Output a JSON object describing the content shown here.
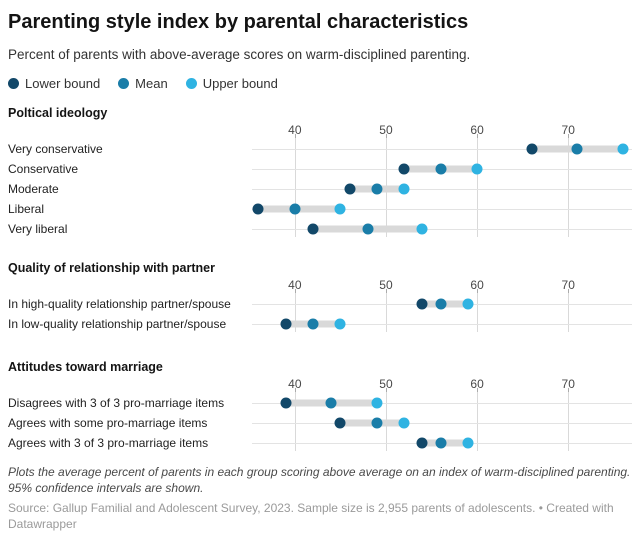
{
  "colors": {
    "lower_bound": "#124869",
    "mean": "#1a7da8",
    "upper_bound": "#2fb3e2",
    "confidence_band": "#d9d9d9",
    "gridline": "#d9d9d9",
    "row_line": "#e3e3e3"
  },
  "chart_data": {
    "type": "scatter",
    "variant": "dot-range-plot",
    "title": "Parenting style index by parental characteristics",
    "subtitle": "Percent of parents with above-average scores on warm-disciplined parenting.",
    "legend": {
      "position": "top",
      "entries": [
        {
          "label": "Lower bound",
          "color": "#124869"
        },
        {
          "label": "Mean",
          "color": "#1a7da8"
        },
        {
          "label": "Upper bound",
          "color": "#2fb3e2"
        }
      ]
    },
    "x_axis": {
      "ticks": [
        40,
        50,
        60,
        70
      ],
      "range": [
        35.3,
        77.0
      ],
      "unit": "percent",
      "grid": true
    },
    "sections": [
      {
        "title": "Poltical ideology",
        "rows": [
          {
            "label": "Very conservative",
            "lower": 66,
            "mean": 71,
            "upper": 76
          },
          {
            "label": "Conservative",
            "lower": 52,
            "mean": 56,
            "upper": 60
          },
          {
            "label": "Moderate",
            "lower": 46,
            "mean": 49,
            "upper": 52
          },
          {
            "label": "Liberal",
            "lower": 36,
            "mean": 40,
            "upper": 45
          },
          {
            "label": "Very liberal",
            "lower": 42,
            "mean": 48,
            "upper": 54
          }
        ]
      },
      {
        "title": "Quality of relationship with partner",
        "rows": [
          {
            "label": "In high-quality relationship partner/spouse",
            "lower": 54,
            "mean": 56,
            "upper": 59
          },
          {
            "label": "In low-quality relationship partner/spouse",
            "lower": 39,
            "mean": 42,
            "upper": 45
          }
        ]
      },
      {
        "title": "Attitudes toward marriage",
        "rows": [
          {
            "label": "Disagrees with 3 of 3 pro-marriage items",
            "lower": 39,
            "mean": 44,
            "upper": 49
          },
          {
            "label": "Agrees with some pro-marriage items",
            "lower": 45,
            "mean": 49,
            "upper": 52
          },
          {
            "label": "Agrees with 3 of 3 pro-marriage items",
            "lower": 54,
            "mean": 56,
            "upper": 59
          }
        ]
      }
    ],
    "notes": "Plots the average percent of parents in each group scoring above average on an index of warm-disciplined parenting. 95% confidence intervals are shown.",
    "source": "Source: Gallup Familial and Adolescent Survey, 2023. Sample size is 2,955 parents of adolescents. • Created with Datawrapper"
  }
}
